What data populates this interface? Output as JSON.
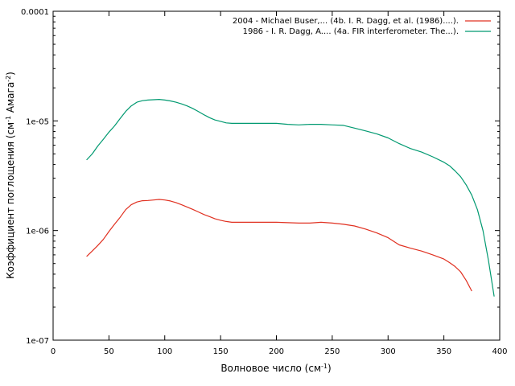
{
  "chart_data": {
    "type": "line",
    "title": "",
    "xlabel": "Волновое число (см",
    "xlabel_sup": "-1",
    "xlabel_end": ")",
    "ylabel_parts": [
      "Коэффициент поглощения (см",
      "-1",
      " Амага",
      "-2",
      ")"
    ],
    "xlim": [
      0,
      400
    ],
    "ylim": [
      1e-07,
      0.0001
    ],
    "yscale": "log",
    "grid": false,
    "legend_position": "top-right",
    "x_ticks": [
      0,
      50,
      100,
      150,
      200,
      250,
      300,
      350,
      400
    ],
    "x_tick_labels": [
      "0",
      "50",
      "100",
      "150",
      "200",
      "250",
      "300",
      "350",
      "400"
    ],
    "y_ticks": [
      1e-07,
      1e-06,
      1e-05,
      0.0001
    ],
    "y_tick_labels": [
      "1e-07",
      "1e-06",
      "1e-05",
      "0.0001"
    ],
    "series": [
      {
        "name": "2004 - Michael Buser,... (4b. I. R. Dagg, et al. (1986)....).",
        "color": "#e03020",
        "x": [
          30,
          35,
          40,
          45,
          50,
          55,
          60,
          65,
          70,
          75,
          80,
          85,
          90,
          95,
          100,
          105,
          110,
          115,
          120,
          125,
          130,
          135,
          140,
          145,
          150,
          155,
          160,
          170,
          180,
          190,
          200,
          210,
          220,
          230,
          240,
          250,
          260,
          270,
          280,
          290,
          300,
          310,
          320,
          330,
          340,
          350,
          355,
          360,
          365,
          370,
          375
        ],
        "y": [
          5.8e-07,
          6.5e-07,
          7.3e-07,
          8.3e-07,
          9.8e-07,
          1.14e-06,
          1.32e-06,
          1.55e-06,
          1.72e-06,
          1.82e-06,
          1.87e-06,
          1.88e-06,
          1.9e-06,
          1.92e-06,
          1.9e-06,
          1.86e-06,
          1.8e-06,
          1.72e-06,
          1.64e-06,
          1.56e-06,
          1.48e-06,
          1.4e-06,
          1.34e-06,
          1.28e-06,
          1.24e-06,
          1.21e-06,
          1.19e-06,
          1.19e-06,
          1.19e-06,
          1.19e-06,
          1.19e-06,
          1.18e-06,
          1.17e-06,
          1.17e-06,
          1.19e-06,
          1.17e-06,
          1.14e-06,
          1.1e-06,
          1.03e-06,
          9.5e-07,
          8.6e-07,
          7.4e-07,
          6.9e-07,
          6.5e-07,
          6e-07,
          5.5e-07,
          5.1e-07,
          4.7e-07,
          4.2e-07,
          3.5e-07,
          2.8e-07
        ]
      },
      {
        "name": "1986 - I. R. Dagg, A.... (4a. FIR interferometer. The...).",
        "color": "#009970",
        "x": [
          30,
          35,
          40,
          45,
          50,
          55,
          60,
          65,
          70,
          75,
          80,
          85,
          90,
          95,
          100,
          105,
          110,
          115,
          120,
          125,
          130,
          135,
          140,
          145,
          150,
          155,
          160,
          170,
          180,
          190,
          200,
          210,
          220,
          230,
          240,
          250,
          260,
          270,
          280,
          290,
          300,
          310,
          320,
          330,
          340,
          350,
          355,
          360,
          365,
          370,
          375,
          380,
          385,
          390,
          395
        ],
        "y": [
          4.4e-06,
          5e-06,
          5.9e-06,
          6.8e-06,
          7.9e-06,
          9e-06,
          1.05e-05,
          1.22e-05,
          1.37e-05,
          1.48e-05,
          1.53e-05,
          1.55e-05,
          1.56e-05,
          1.57e-05,
          1.55e-05,
          1.52e-05,
          1.48e-05,
          1.43e-05,
          1.37e-05,
          1.3e-05,
          1.22e-05,
          1.14e-05,
          1.07e-05,
          1.02e-05,
          9.9e-06,
          9.6e-06,
          9.5e-06,
          9.5e-06,
          9.5e-06,
          9.5e-06,
          9.5e-06,
          9.3e-06,
          9.2e-06,
          9.3e-06,
          9.3e-06,
          9.2e-06,
          9.1e-06,
          8.6e-06,
          8.1e-06,
          7.6e-06,
          7e-06,
          6.2e-06,
          5.6e-06,
          5.2e-06,
          4.7e-06,
          4.2e-06,
          3.9e-06,
          3.5e-06,
          3.1e-06,
          2.6e-06,
          2.1e-06,
          1.55e-06,
          1e-06,
          5.3e-07,
          2.5e-07
        ]
      }
    ]
  }
}
